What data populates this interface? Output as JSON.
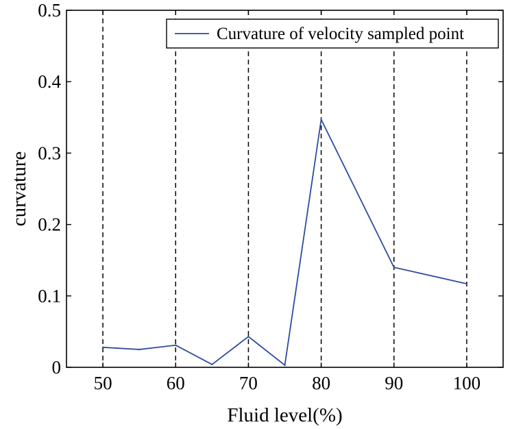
{
  "chart_data": {
    "type": "line",
    "title": "",
    "xlabel": "Fluid level(%)",
    "ylabel": "curvature",
    "xlim": [
      45,
      105
    ],
    "ylim": [
      0,
      0.5
    ],
    "xticks": [
      50,
      60,
      70,
      80,
      90,
      100
    ],
    "xtick_labels": [
      "50",
      "60",
      "70",
      "80",
      "90",
      "100"
    ],
    "yticks": [
      0,
      0.1,
      0.2,
      0.3,
      0.4,
      0.5
    ],
    "ytick_labels": [
      "0",
      "0.1",
      "0.2",
      "0.3",
      "0.4",
      "0.5"
    ],
    "vertical_reference_lines": [
      50,
      60,
      70,
      80,
      90,
      100
    ],
    "legend_location": "top-right",
    "series": [
      {
        "name": "Curvature of velocity sampled point",
        "color": "#2e4a9e",
        "x": [
          50,
          55,
          60,
          65,
          70,
          75,
          80,
          90,
          100
        ],
        "y": [
          0.028,
          0.025,
          0.031,
          0.004,
          0.043,
          0.003,
          0.347,
          0.14,
          0.117
        ]
      }
    ]
  }
}
